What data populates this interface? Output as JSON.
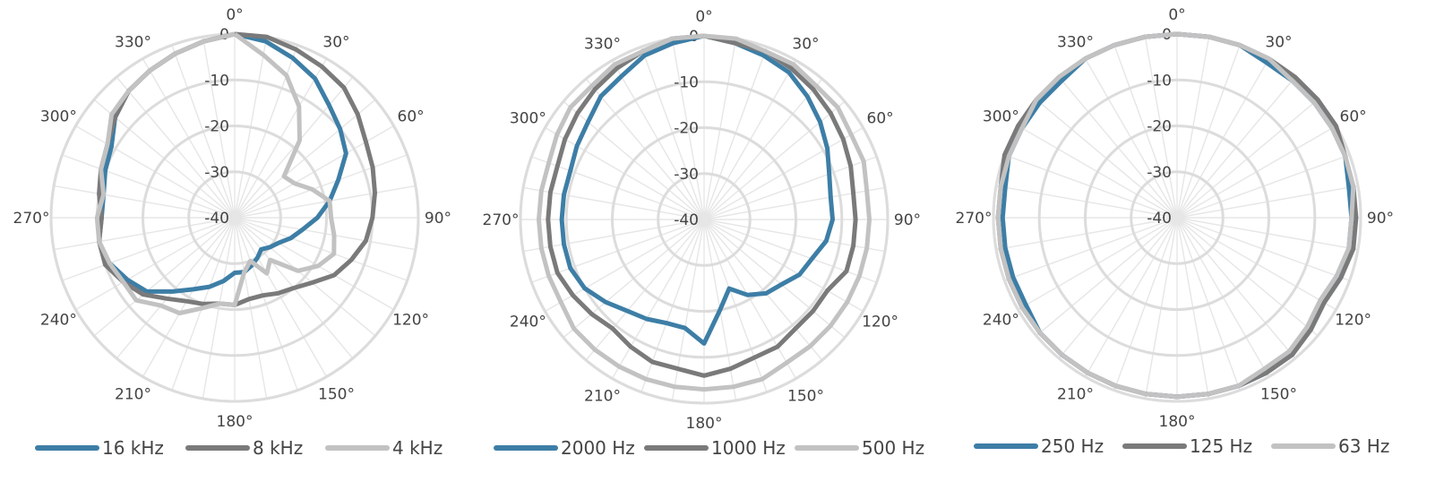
{
  "chart_data": [
    {
      "type": "polar-line",
      "angle_labels": [
        "0°",
        "30°",
        "60°",
        "90°",
        "120°",
        "150°",
        "180°",
        "210°",
        "240°",
        "270°",
        "300°",
        "330°"
      ],
      "r_ticks": [
        0,
        -10,
        -20,
        -30,
        -40
      ],
      "rlim": [
        -40,
        0
      ],
      "angles": [
        0,
        10,
        20,
        30,
        40,
        50,
        60,
        70,
        80,
        90,
        100,
        110,
        120,
        130,
        140,
        150,
        160,
        170,
        180,
        190,
        200,
        210,
        220,
        230,
        240,
        250,
        260,
        270,
        280,
        290,
        300,
        310,
        320,
        330,
        340,
        350
      ],
      "series": [
        {
          "name": "16 kHz",
          "color": "#3d7ea6",
          "values": [
            0,
            -1,
            -3,
            -5,
            -8,
            -10,
            -12,
            -16,
            -19,
            -22,
            -25,
            -27,
            -29,
            -30,
            -31,
            -30,
            -29,
            -28,
            -28,
            -26,
            -24,
            -22,
            -19,
            -15,
            -13,
            -11,
            -10,
            -11,
            -11,
            -10,
            -9,
            -6,
            -4,
            -3,
            -2,
            -1
          ]
        },
        {
          "name": "8 kHz",
          "color": "#7a7a7a",
          "values": [
            0,
            0,
            -1,
            -2,
            -3,
            -5,
            -7,
            -8,
            -9,
            -10,
            -11,
            -13,
            -15,
            -18,
            -20,
            -21,
            -22,
            -22,
            -21,
            -21,
            -20,
            -19,
            -17,
            -14,
            -12,
            -10,
            -10,
            -11,
            -10,
            -9,
            -8,
            -6,
            -4,
            -3,
            -2,
            -1
          ]
        },
        {
          "name": "4 kHz",
          "color": "#c2c2c2",
          "values": [
            0,
            -4,
            -7,
            -12,
            -18,
            -26,
            -25,
            -22,
            -19,
            -19,
            -18,
            -17,
            -19,
            -22,
            -28,
            -26,
            -30,
            -28,
            -21,
            -21,
            -19,
            -16,
            -15,
            -12,
            -12,
            -11,
            -10,
            -10,
            -11,
            -9,
            -8,
            -5,
            -4,
            -3,
            -2,
            -1
          ]
        }
      ]
    },
    {
      "type": "polar-line",
      "angle_labels": [
        "0°",
        "30°",
        "60°",
        "90°",
        "120°",
        "150°",
        "180°",
        "210°",
        "240°",
        "270°",
        "300°",
        "330°"
      ],
      "r_ticks": [
        0,
        -10,
        -20,
        -30,
        -40
      ],
      "rlim": [
        -40,
        0
      ],
      "angles": [
        0,
        10,
        20,
        30,
        40,
        50,
        60,
        70,
        80,
        90,
        100,
        110,
        120,
        130,
        140,
        150,
        160,
        170,
        180,
        190,
        200,
        210,
        220,
        230,
        240,
        250,
        260,
        270,
        280,
        290,
        300,
        310,
        320,
        330,
        340,
        350
      ],
      "series": [
        {
          "name": "2000 Hz",
          "color": "#3d7ea6",
          "values": [
            0,
            -1,
            -2,
            -3,
            -5,
            -7,
            -9,
            -11,
            -12,
            -12,
            -13,
            -15,
            -16,
            -18,
            -19,
            -21,
            -24,
            -20,
            -13,
            -16,
            -16,
            -15,
            -14,
            -12,
            -10,
            -9,
            -9,
            -9,
            -9,
            -9,
            -8,
            -7,
            -5,
            -4,
            -2,
            -1
          ]
        },
        {
          "name": "1000 Hz",
          "color": "#7a7a7a",
          "values": [
            0,
            -1,
            -1,
            -2,
            -3,
            -4,
            -5,
            -6,
            -7,
            -7,
            -7,
            -7,
            -9,
            -9,
            -9,
            -8,
            -8,
            -7,
            -6,
            -7,
            -7,
            -8,
            -9,
            -8,
            -7,
            -6,
            -6,
            -6,
            -6,
            -6,
            -5,
            -4,
            -3,
            -2,
            -1,
            0
          ]
        },
        {
          "name": "500 Hz",
          "color": "#c2c2c2",
          "values": [
            0,
            0,
            -1,
            -1,
            -2,
            -2,
            -3,
            -3,
            -4,
            -4,
            -4,
            -4,
            -4,
            -4,
            -4,
            -4,
            -3,
            -3,
            -3,
            -3,
            -3,
            -3,
            -3,
            -3,
            -4,
            -4,
            -4,
            -4,
            -4,
            -4,
            -3,
            -2,
            -2,
            -1,
            -1,
            0
          ]
        }
      ]
    },
    {
      "type": "polar-line",
      "angle_labels": [
        "0°",
        "30°",
        "60°",
        "90°",
        "120°",
        "150°",
        "180°",
        "210°",
        "240°",
        "270°",
        "300°",
        "330°"
      ],
      "r_ticks": [
        0,
        -10,
        -20,
        -30,
        -40
      ],
      "rlim": [
        -40,
        0
      ],
      "angles": [
        0,
        10,
        20,
        30,
        40,
        50,
        60,
        70,
        80,
        90,
        100,
        110,
        120,
        130,
        140,
        150,
        160,
        170,
        180,
        190,
        200,
        210,
        220,
        230,
        240,
        250,
        260,
        270,
        280,
        290,
        300,
        310,
        320,
        330,
        340,
        350
      ],
      "series": [
        {
          "name": "250 Hz",
          "color": "#3d7ea6",
          "values": [
            0,
            0,
            0,
            -1,
            -1,
            -1,
            -1,
            -1,
            -2,
            -2,
            -2,
            -2,
            -3,
            -2,
            -2,
            -1,
            -1,
            -1,
            -1,
            -1,
            -1,
            -1,
            -1,
            -1,
            -2,
            -2,
            -2,
            -2,
            -2,
            -1,
            -1,
            -1,
            -1,
            0,
            0,
            0
          ]
        },
        {
          "name": "125 Hz",
          "color": "#7a7a7a",
          "values": [
            0,
            0,
            0,
            0,
            0,
            0,
            0,
            -1,
            -1,
            -1,
            -1,
            -2,
            -3,
            -2,
            -1,
            -1,
            -1,
            -1,
            -1,
            -1,
            -1,
            -1,
            -1,
            -1,
            -1,
            -1,
            -1,
            -1,
            -1,
            0,
            0,
            0,
            0,
            0,
            0,
            0
          ]
        },
        {
          "name": "63 Hz",
          "color": "#c2c2c2",
          "values": [
            0,
            0,
            0,
            0,
            -1,
            -1,
            -1,
            -1,
            -1,
            -2,
            -2,
            -3,
            -4,
            -3,
            -2,
            -2,
            -1,
            -1,
            -1,
            -1,
            -1,
            -1,
            -1,
            -1,
            -1,
            -1,
            -1,
            -1,
            -1,
            -1,
            -1,
            0,
            0,
            0,
            0,
            0
          ]
        }
      ]
    }
  ]
}
